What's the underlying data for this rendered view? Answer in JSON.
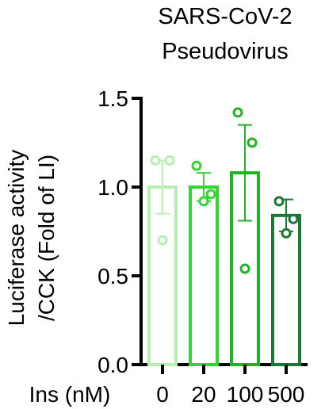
{
  "chart_data": {
    "type": "bar",
    "title_lines": [
      "SARS-CoV-2",
      "Pseudovirus"
    ],
    "ylabel_lines": [
      "Luciferase activity",
      "/CCK (Fold of LI)"
    ],
    "xlabel": "Ins (nM)",
    "categories": [
      "0",
      "20",
      "100",
      "500"
    ],
    "values": [
      1.0,
      1.0,
      1.08,
      0.84
    ],
    "errors": [
      0.15,
      0.08,
      0.27,
      0.09
    ],
    "points": [
      [
        1.15,
        1.15,
        0.7
      ],
      [
        1.12,
        0.96,
        0.92
      ],
      [
        1.42,
        1.25,
        0.54
      ],
      [
        0.92,
        0.82,
        0.74
      ]
    ],
    "colors": [
      "#b6f0b0",
      "#33d633",
      "#22b322",
      "#1a7a35"
    ],
    "ylim": [
      0,
      1.5
    ],
    "yticks": [
      "0.0",
      "0.5",
      "1.0",
      "1.5"
    ],
    "grid": false
  }
}
